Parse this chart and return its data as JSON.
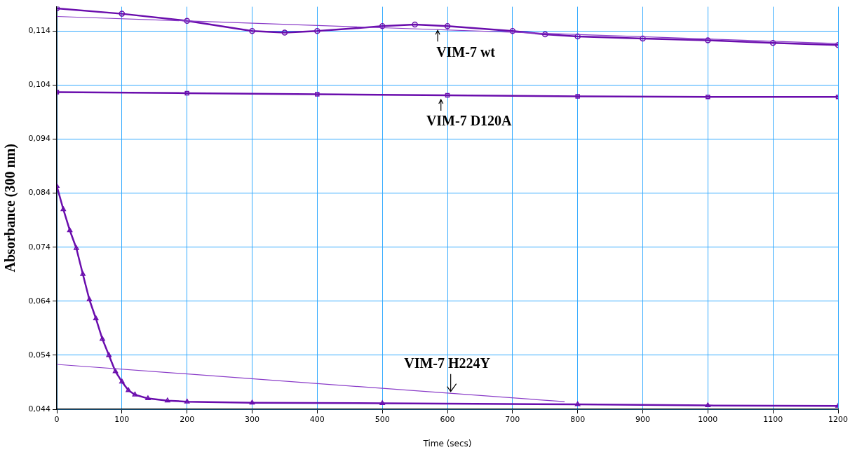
{
  "chart_data": {
    "type": "line",
    "xlabel": "Time (secs)",
    "ylabel": "Absorbance (300 nm)",
    "xlim": [
      0,
      1200
    ],
    "xticks": [
      0,
      100,
      200,
      300,
      400,
      500,
      600,
      700,
      800,
      900,
      1000,
      1100,
      1200
    ],
    "ylim": [
      0.044,
      0.1185
    ],
    "yticks": [
      {
        "value": 0.044,
        "label": "0,044"
      },
      {
        "value": 0.054,
        "label": "0,054"
      },
      {
        "value": 0.064,
        "label": "0,064"
      },
      {
        "value": 0.074,
        "label": "0,074"
      },
      {
        "value": 0.084,
        "label": "0,084"
      },
      {
        "value": 0.094,
        "label": "0,094"
      },
      {
        "value": 0.104,
        "label": "0,104"
      },
      {
        "value": 0.114,
        "label": "0,114"
      }
    ],
    "grid": true,
    "legend": false,
    "line_style": "solid",
    "series": [
      {
        "color": "#6a0dad",
        "marker": "circle",
        "x": [
          0,
          100,
          200,
          300,
          350,
          400,
          500,
          550,
          600,
          700,
          750,
          800,
          900,
          1000,
          1100,
          1200
        ],
        "values": [
          0.1182,
          0.1172,
          0.1159,
          0.114,
          0.1137,
          0.114,
          0.1149,
          0.1152,
          0.1149,
          0.114,
          0.1134,
          0.113,
          0.1126,
          0.1123,
          0.1118,
          0.1114
        ]
      },
      {
        "color": "#8a3cc8",
        "marker": "none",
        "x": [
          0,
          1200
        ],
        "values": [
          0.1167,
          0.1117
        ]
      },
      {
        "color": "#6a0dad",
        "marker": "square",
        "x": [
          0,
          200,
          400,
          600,
          800,
          1000,
          1200
        ],
        "values": [
          0.1027,
          0.1025,
          0.1023,
          0.1021,
          0.1019,
          0.1018,
          0.1018
        ]
      },
      {
        "color": "#6a0dad",
        "marker": "triangle",
        "x": [
          0,
          10,
          20,
          30,
          40,
          50,
          60,
          70,
          80,
          90,
          100,
          110,
          120,
          140,
          170,
          200,
          300,
          500,
          800,
          1000,
          1200
        ],
        "values": [
          0.0853,
          0.081,
          0.0771,
          0.0738,
          0.069,
          0.0643,
          0.0608,
          0.057,
          0.054,
          0.051,
          0.0491,
          0.0475,
          0.0467,
          0.046,
          0.0456,
          0.0454,
          0.0452,
          0.0451,
          0.0449,
          0.0447,
          0.0446
        ]
      },
      {
        "color": "#8a3cc8",
        "marker": "none",
        "x": [
          0,
          780
        ],
        "values": [
          0.0523,
          0.0454
        ]
      }
    ],
    "annotations": [
      {
        "text": "VIM-7 wt",
        "x": 585,
        "y": 0.1149
      },
      {
        "text": "VIM-7 D120A",
        "x": 590,
        "y": 0.1021
      },
      {
        "text": "VIM-7 H224Y",
        "x": 605,
        "y": 0.0469
      }
    ]
  }
}
